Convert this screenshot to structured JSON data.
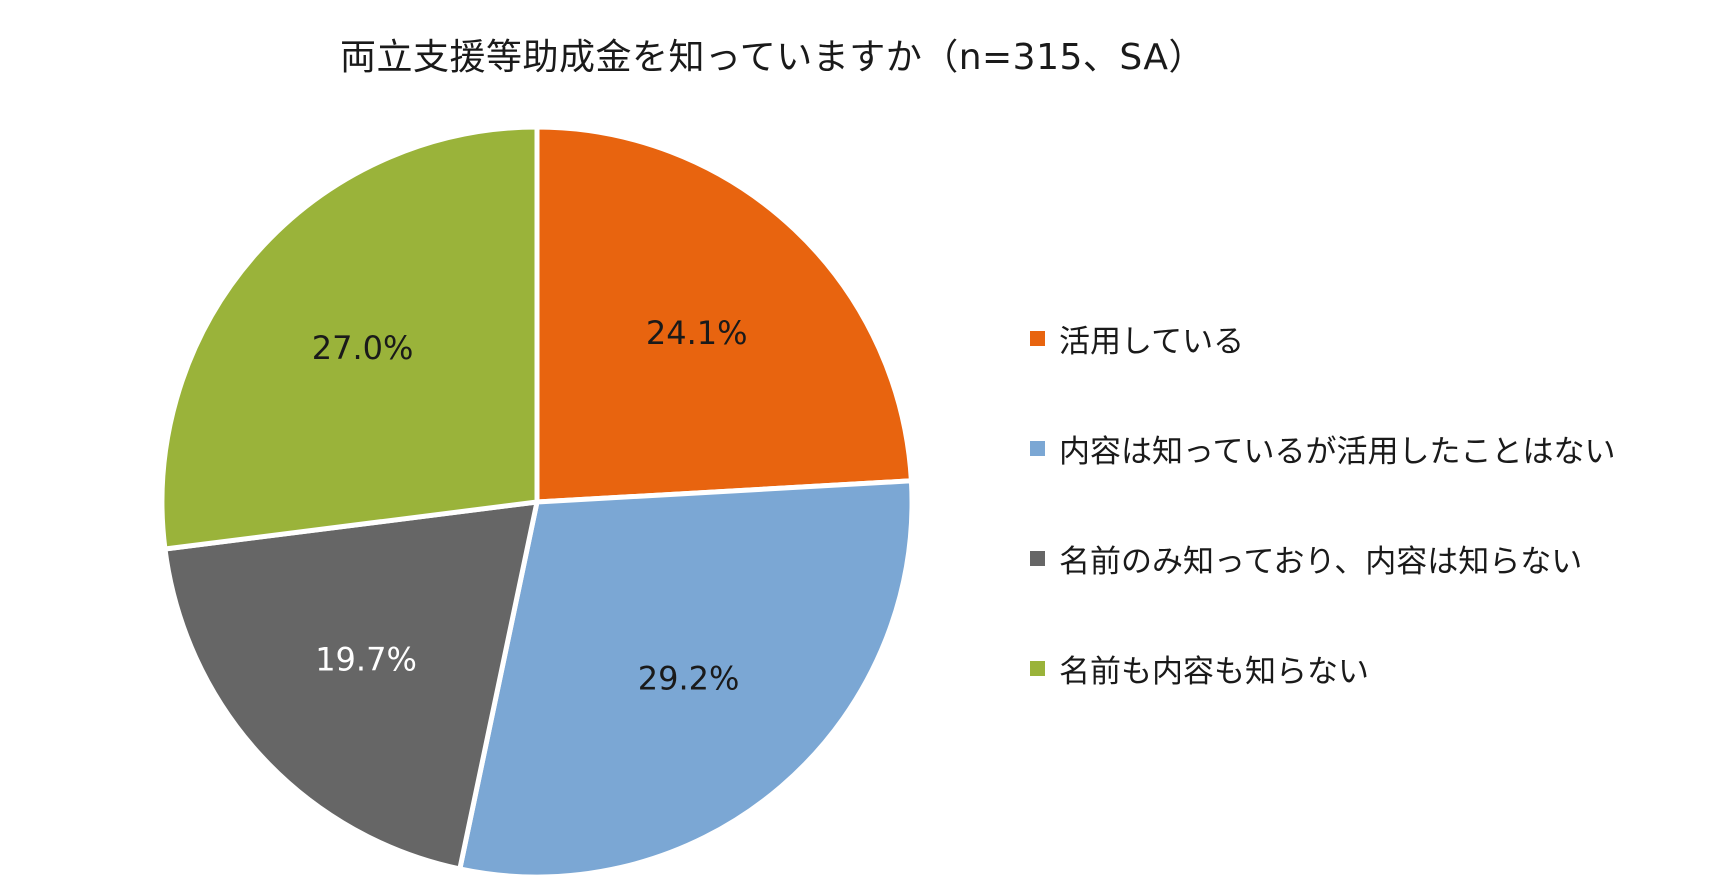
{
  "chart_data": {
    "type": "pie",
    "title": "両立支援等助成金を知っていますか（n=315、SA）",
    "start_angle_deg": 0,
    "direction": "clockwise",
    "slices": [
      {
        "label": "活用している",
        "value": 24.1,
        "display": "24.1%",
        "color": "#e8640f",
        "label_color": "#1a1a1a"
      },
      {
        "label": "内容は知っているが活用したことはない",
        "value": 29.2,
        "display": "29.2%",
        "color": "#7ba7d4",
        "label_color": "#1a1a1a"
      },
      {
        "label": "名前のみ知っており、内容は知らない",
        "value": 19.7,
        "display": "19.7%",
        "color": "#666666",
        "label_color": "#ffffff"
      },
      {
        "label": "名前も内容も知らない",
        "value": 27.0,
        "display": "27.0%",
        "color": "#9ab33a",
        "label_color": "#1a1a1a"
      }
    ],
    "legend": {
      "position": "right"
    }
  }
}
